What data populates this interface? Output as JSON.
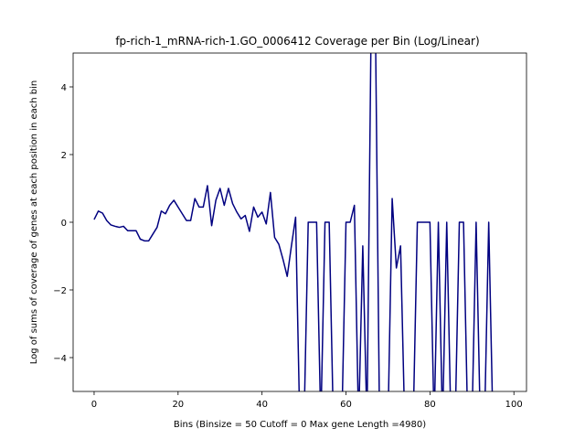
{
  "chart_data": {
    "type": "line",
    "title": "fp-rich-1_mRNA-rich-1.GO_0006412 Coverage per Bin (Log/Linear)",
    "xlabel": "Bins  (Binsize = 50 Cutoff = 0 Max gene Length =4980)",
    "ylabel": "Log of sums of coverage of genes at each position in each bin",
    "xlim": [
      -5,
      103
    ],
    "ylim": [
      -5,
      5
    ],
    "xticks": [
      0,
      20,
      40,
      60,
      80,
      100
    ],
    "yticks": [
      -4,
      -2,
      0,
      2,
      4
    ],
    "xtick_labels": [
      "0",
      "20",
      "40",
      "60",
      "80",
      "100"
    ],
    "ytick_labels": [
      "−4",
      "−2",
      "0",
      "2",
      "4"
    ],
    "line_color": "#000080",
    "grid": false,
    "series": [
      {
        "x": [
          0,
          1,
          2,
          3,
          4,
          5,
          6,
          7,
          8,
          9,
          10,
          11,
          12,
          13,
          14,
          15,
          16,
          17,
          18,
          19,
          20,
          21,
          22,
          23,
          24,
          25,
          26,
          27,
          28,
          29,
          30,
          31,
          32,
          33,
          34,
          35,
          36,
          37,
          38,
          39,
          40,
          41,
          42,
          43,
          44,
          45,
          46,
          47,
          48,
          49,
          50,
          51,
          52,
          53,
          54,
          55,
          56,
          57,
          58,
          59,
          60,
          61,
          62,
          63,
          64,
          65,
          66,
          67,
          68,
          69,
          70,
          71,
          72,
          73,
          74,
          75,
          76,
          77,
          78,
          79,
          80,
          81,
          82,
          83,
          84,
          85,
          86,
          87,
          88,
          89,
          90,
          91,
          92,
          93,
          94,
          95,
          96,
          97,
          98,
          99
        ],
        "y": [
          0.08,
          0.33,
          0.27,
          0.05,
          -0.08,
          -0.12,
          -0.15,
          -0.12,
          -0.25,
          -0.25,
          -0.25,
          -0.5,
          -0.55,
          -0.55,
          -0.35,
          -0.15,
          0.33,
          0.25,
          0.5,
          0.65,
          0.45,
          0.25,
          0.05,
          0.05,
          0.7,
          0.45,
          0.45,
          1.08,
          -0.1,
          0.65,
          1.0,
          0.5,
          1.0,
          0.55,
          0.3,
          0.1,
          0.2,
          -0.27,
          0.45,
          0.15,
          0.3,
          -0.05,
          0.88,
          -0.45,
          -0.65,
          -1.1,
          -1.6,
          -0.7,
          0.15,
          -6,
          -6,
          0.0,
          0.0,
          0.0,
          -6,
          0.0,
          0.0,
          -6,
          -6,
          -6,
          0.0,
          0.0,
          0.5,
          -6,
          -0.7,
          -6,
          6,
          6,
          -6,
          -6,
          -6,
          0.7,
          -1.35,
          -0.7,
          -6,
          -6,
          -6,
          0.0,
          0.0,
          0.0,
          0.0,
          -6,
          0.0,
          -6,
          0.0,
          -6,
          -6,
          0.0,
          0.0,
          -6,
          -6,
          0.0,
          -6,
          -6,
          0.0,
          -6,
          -6,
          -6,
          -6,
          -6
        ]
      }
    ]
  }
}
